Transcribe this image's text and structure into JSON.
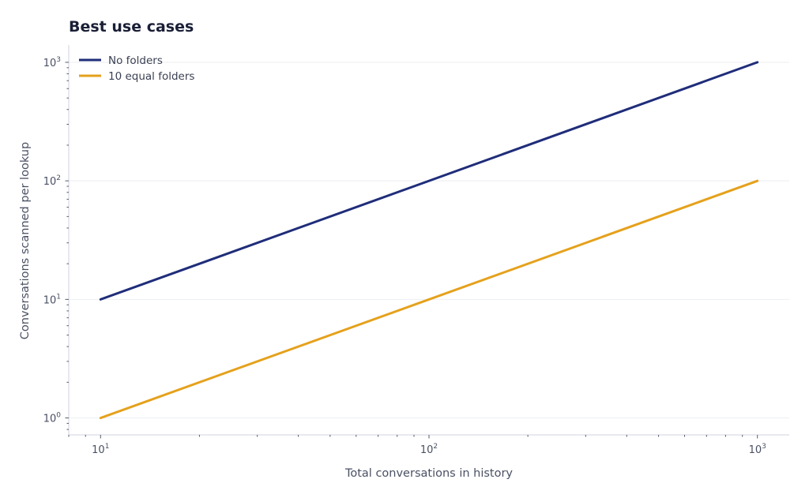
{
  "chart_data": {
    "type": "line",
    "title": "Best use cases",
    "xlabel": "Total conversations in history",
    "ylabel": "Conversations scanned per lookup",
    "xscale": "log",
    "yscale": "log",
    "xlim": [
      8,
      1250
    ],
    "ylim": [
      0.72,
      1400
    ],
    "grid": "horizontal",
    "legend_position": "top-left",
    "x_ticks": [
      {
        "value": 10,
        "base": "10",
        "exp": "1"
      },
      {
        "value": 100,
        "base": "10",
        "exp": "2"
      },
      {
        "value": 1000,
        "base": "10",
        "exp": "3"
      }
    ],
    "y_ticks": [
      {
        "value": 1,
        "base": "10",
        "exp": "0"
      },
      {
        "value": 10,
        "base": "10",
        "exp": "1"
      },
      {
        "value": 100,
        "base": "10",
        "exp": "2"
      },
      {
        "value": 1000,
        "base": "10",
        "exp": "3"
      }
    ],
    "series": [
      {
        "name": "No folders",
        "color": "#1f2d7a",
        "x": [
          10,
          1000
        ],
        "y": [
          10,
          1000
        ]
      },
      {
        "name": "10 equal folders",
        "color": "#e5a11c",
        "x": [
          10,
          1000
        ],
        "y": [
          1,
          100
        ]
      }
    ]
  }
}
